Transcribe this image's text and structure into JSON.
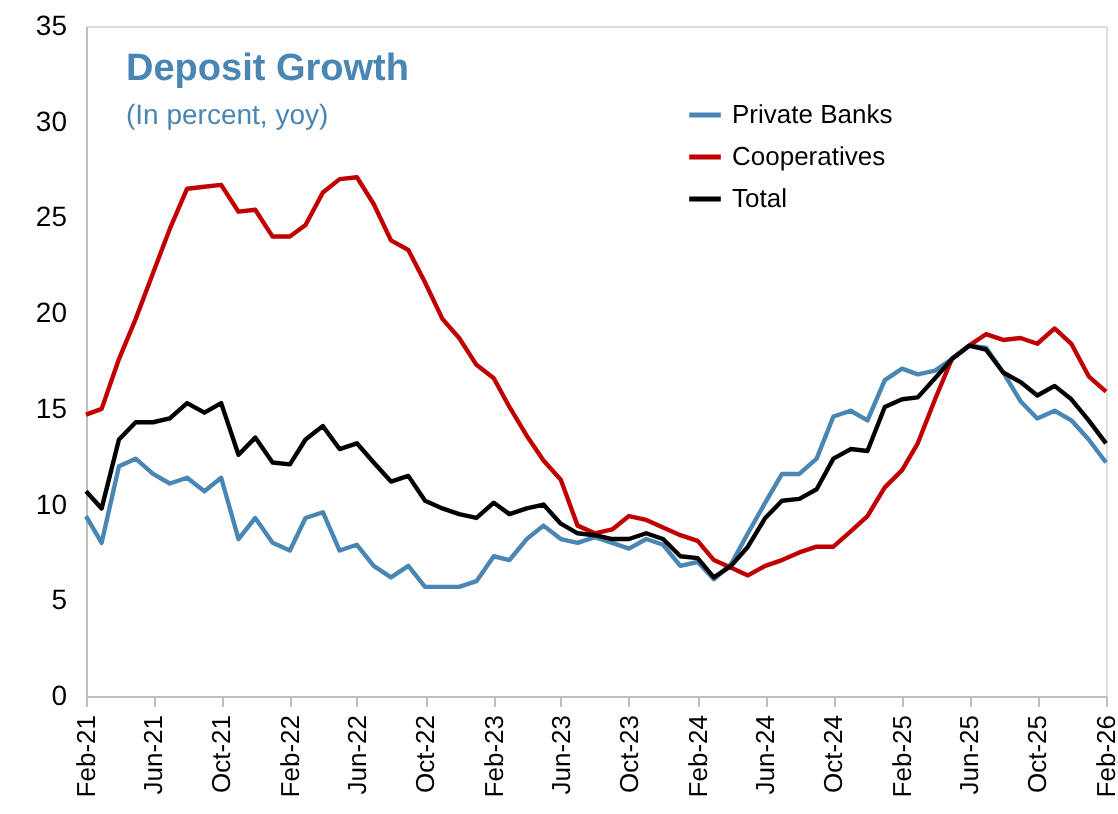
{
  "chart_data": {
    "type": "line",
    "title": "Deposit Growth",
    "subtitle": "(In percent, yoy)",
    "x": [
      "2021-02",
      "2021-03",
      "2021-04",
      "2021-05",
      "2021-06",
      "2021-07",
      "2021-08",
      "2021-09",
      "2021-10",
      "2021-11",
      "2021-12",
      "2022-01",
      "2022-02",
      "2022-03",
      "2022-04",
      "2022-05",
      "2022-06",
      "2022-07",
      "2022-08",
      "2022-09",
      "2022-10",
      "2022-11",
      "2022-12",
      "2023-01",
      "2023-02",
      "2023-03",
      "2023-04",
      "2023-05",
      "2023-06",
      "2023-07",
      "2023-08",
      "2023-09",
      "2023-10",
      "2023-11",
      "2023-12",
      "2024-01",
      "2024-02",
      "2024-03",
      "2024-04",
      "2024-05",
      "2024-06",
      "2024-07",
      "2024-08",
      "2024-09",
      "2024-10",
      "2024-11",
      "2024-12",
      "2025-01",
      "2025-02",
      "2025-03",
      "2025-04",
      "2025-05",
      "2025-06",
      "2025-07",
      "2025-08",
      "2025-09",
      "2025-10",
      "2025-11",
      "2025-12",
      "2026-01",
      "2026-02"
    ],
    "series": [
      {
        "name": "Private Banks",
        "color": "#4a86b4",
        "values": [
          9.4,
          8.0,
          12.0,
          12.4,
          11.6,
          11.1,
          11.4,
          10.7,
          11.4,
          8.2,
          9.3,
          8.0,
          7.6,
          9.3,
          9.6,
          7.6,
          7.9,
          6.8,
          6.2,
          6.8,
          5.7,
          5.7,
          5.7,
          6.0,
          7.3,
          7.1,
          8.2,
          8.9,
          8.2,
          8.0,
          8.3,
          8.0,
          7.7,
          8.2,
          7.9,
          6.8,
          7.0,
          6.1,
          6.9,
          8.5,
          10.1,
          11.6,
          11.6,
          12.4,
          14.6,
          14.9,
          14.4,
          16.5,
          17.1,
          16.8,
          17.0,
          17.6,
          18.3,
          18.2,
          16.9,
          15.4,
          14.5,
          14.9,
          14.4,
          13.4,
          12.2
        ]
      },
      {
        "name": "Cooperatives",
        "color": "#c00000",
        "values": [
          14.7,
          15.0,
          17.6,
          19.7,
          22.1,
          24.4,
          26.5,
          26.6,
          26.7,
          25.3,
          25.4,
          24.0,
          24.0,
          24.6,
          26.3,
          27.0,
          27.1,
          25.7,
          23.8,
          23.3,
          21.6,
          19.7,
          18.7,
          17.3,
          16.6,
          15.1,
          13.6,
          12.3,
          11.3,
          8.9,
          8.5,
          8.7,
          9.4,
          9.2,
          8.8,
          8.4,
          8.1,
          7.1,
          6.7,
          6.3,
          6.8,
          7.1,
          7.5,
          7.8,
          7.8,
          8.6,
          9.4,
          10.9,
          11.8,
          13.2,
          15.5,
          17.6,
          18.3,
          18.9,
          18.6,
          18.7,
          18.4,
          19.2,
          18.4,
          16.7,
          15.9
        ]
      },
      {
        "name": "Total",
        "color": "#000000",
        "values": [
          10.7,
          9.8,
          13.4,
          14.3,
          14.3,
          14.5,
          15.3,
          14.8,
          15.3,
          12.6,
          13.5,
          12.2,
          12.1,
          13.4,
          14.1,
          12.9,
          13.2,
          12.2,
          11.2,
          11.5,
          10.2,
          9.8,
          9.5,
          9.3,
          10.1,
          9.5,
          9.8,
          10.0,
          9.0,
          8.5,
          8.4,
          8.2,
          8.2,
          8.5,
          8.2,
          7.3,
          7.2,
          6.2,
          6.8,
          7.8,
          9.3,
          10.2,
          10.3,
          10.8,
          12.4,
          12.9,
          12.8,
          15.1,
          15.5,
          15.6,
          16.6,
          17.6,
          18.3,
          18.1,
          16.9,
          16.4,
          15.7,
          16.2,
          15.5,
          14.4,
          13.2
        ]
      }
    ],
    "xlim": [
      "2021-02",
      "2026-02"
    ],
    "xticks": [
      {
        "value": "2021-02",
        "label": "Feb-21"
      },
      {
        "value": "2021-06",
        "label": "Jun-21"
      },
      {
        "value": "2021-10",
        "label": "Oct-21"
      },
      {
        "value": "2022-02",
        "label": "Feb-22"
      },
      {
        "value": "2022-06",
        "label": "Jun-22"
      },
      {
        "value": "2022-10",
        "label": "Oct-22"
      },
      {
        "value": "2023-02",
        "label": "Feb-23"
      },
      {
        "value": "2023-06",
        "label": "Jun-23"
      },
      {
        "value": "2023-10",
        "label": "Oct-23"
      },
      {
        "value": "2024-02",
        "label": "Feb-24"
      },
      {
        "value": "2024-06",
        "label": "Jun-24"
      },
      {
        "value": "2024-10",
        "label": "Oct-24"
      },
      {
        "value": "2025-02",
        "label": "Feb-25"
      },
      {
        "value": "2025-06",
        "label": "Jun-25"
      },
      {
        "value": "2025-10",
        "label": "Oct-25"
      },
      {
        "value": "2026-02",
        "label": "Feb-26"
      }
    ],
    "ylim": [
      0,
      35
    ],
    "yticks": [
      0,
      5,
      10,
      15,
      20,
      25,
      30,
      35
    ],
    "grid": false,
    "legend": "top right",
    "marker": "none",
    "line_style": "solid"
  }
}
